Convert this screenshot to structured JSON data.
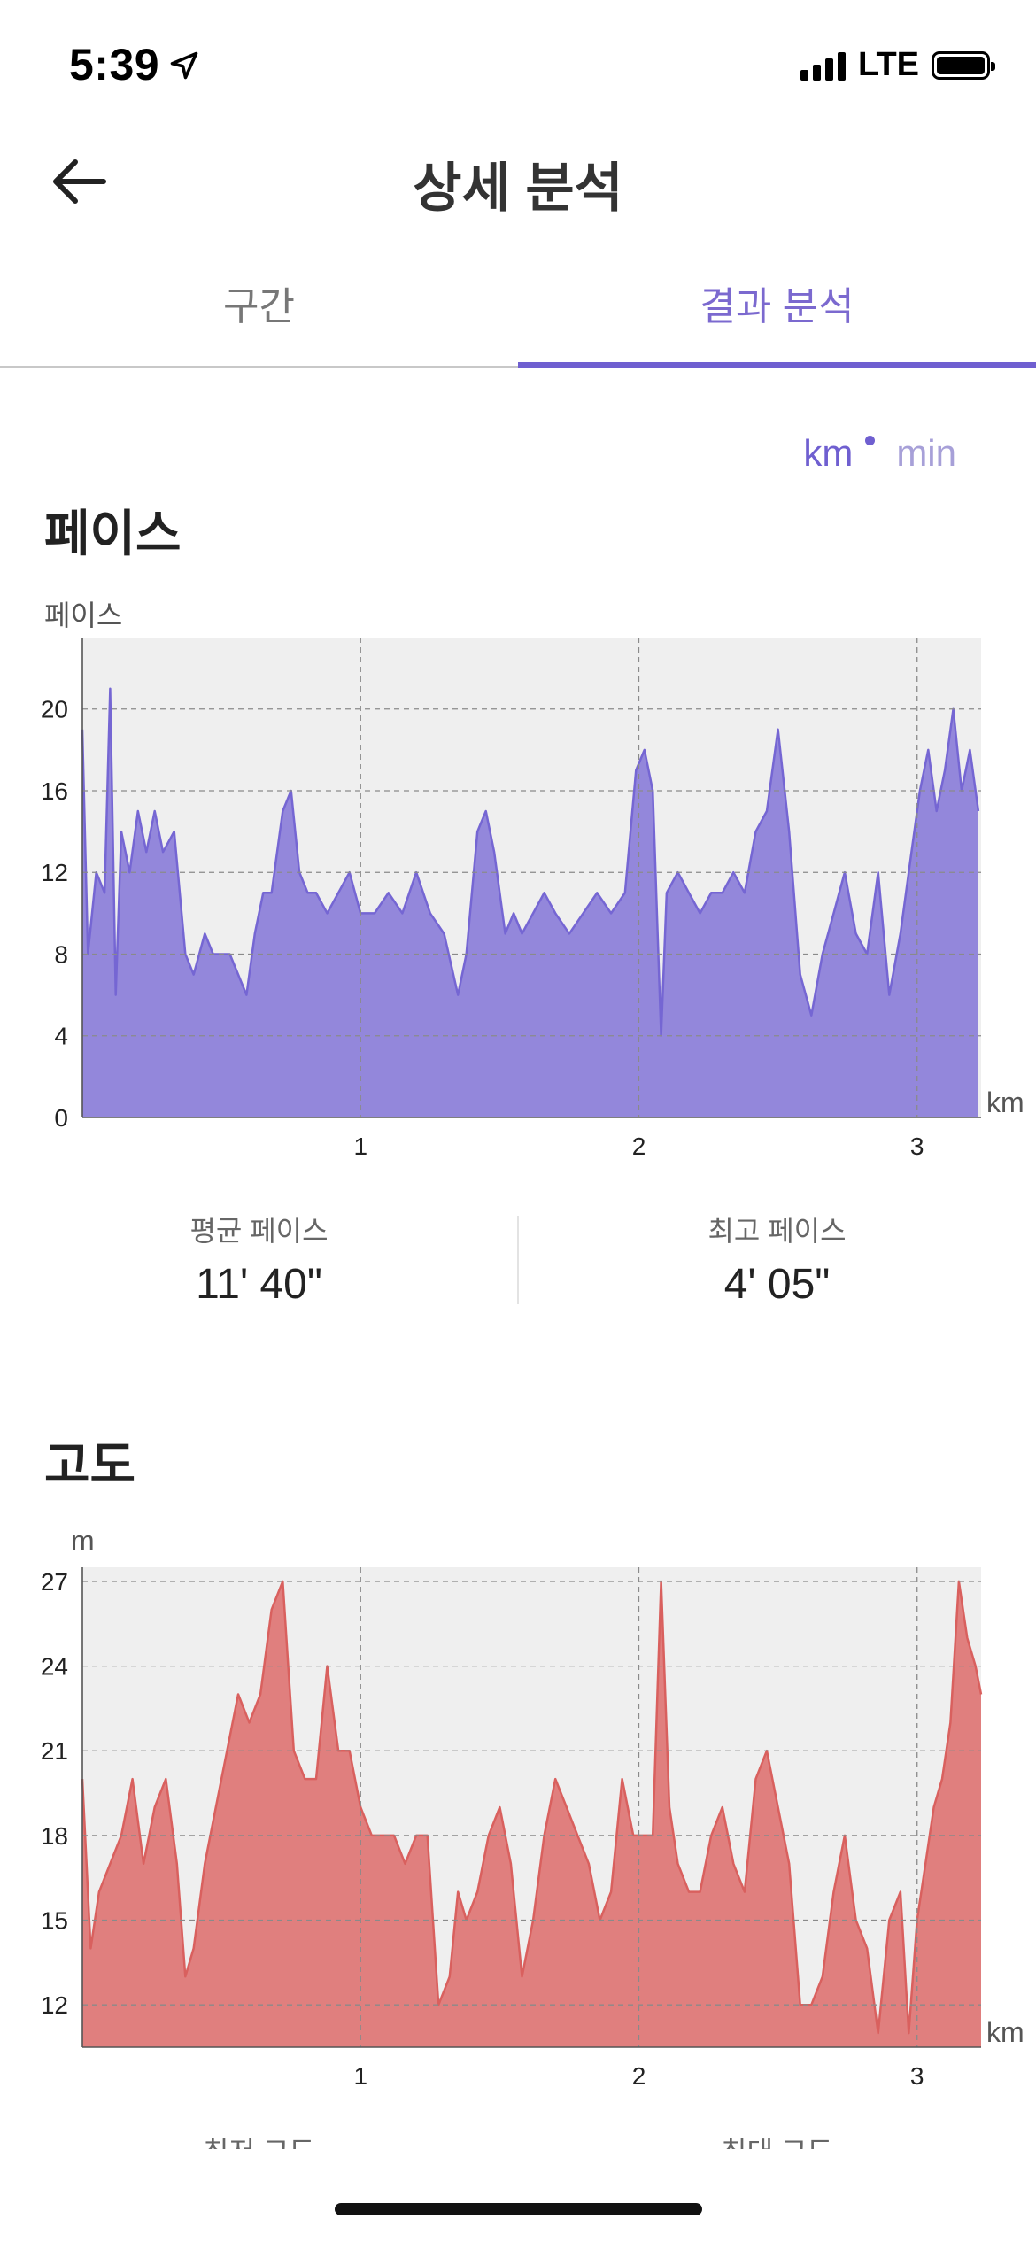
{
  "status": {
    "time": "5:39",
    "network": "LTE"
  },
  "nav": {
    "title": "상세 분석"
  },
  "tabs": [
    {
      "label": "구간"
    },
    {
      "label": "결과 분석"
    }
  ],
  "unit_toggle": {
    "km": "km",
    "min": "min"
  },
  "pace": {
    "title": "페이스",
    "axis_name": "페이스",
    "x_unit": "km",
    "avg_label": "평균 페이스",
    "avg_value": "11' 40\"",
    "best_label": "최고 페이스",
    "best_value": "4' 05\""
  },
  "elevation": {
    "title": "고도",
    "axis_name": "m",
    "x_unit": "km",
    "min_label": "최저 고도",
    "max_label": "최대 고도"
  },
  "colors": {
    "accent": "#6f5fd0",
    "pace_fill": "#9387db",
    "pace_line": "#7566d3",
    "elev_fill": "#e07f7e",
    "elev_line": "#d9605e",
    "plot_bg": "#efefef"
  },
  "chart_data": [
    {
      "type": "area",
      "ylim": [
        0,
        23.5
      ],
      "xlim": [
        0,
        3.23
      ],
      "y_ticks": [
        0,
        4,
        8,
        12,
        16,
        20
      ],
      "x_ticks": [
        1,
        2,
        3
      ],
      "grid": true,
      "x": [
        0,
        0.02,
        0.05,
        0.08,
        0.1,
        0.12,
        0.14,
        0.17,
        0.2,
        0.23,
        0.26,
        0.29,
        0.33,
        0.37,
        0.4,
        0.44,
        0.47,
        0.5,
        0.53,
        0.56,
        0.59,
        0.62,
        0.65,
        0.68,
        0.72,
        0.75,
        0.78,
        0.81,
        0.84,
        0.88,
        0.92,
        0.96,
        1.0,
        1.05,
        1.1,
        1.15,
        1.2,
        1.25,
        1.3,
        1.35,
        1.38,
        1.42,
        1.45,
        1.48,
        1.52,
        1.55,
        1.58,
        1.62,
        1.66,
        1.7,
        1.75,
        1.8,
        1.85,
        1.9,
        1.95,
        1.99,
        2.02,
        2.05,
        2.08,
        2.1,
        2.14,
        2.18,
        2.22,
        2.26,
        2.3,
        2.34,
        2.38,
        2.42,
        2.46,
        2.5,
        2.54,
        2.58,
        2.62,
        2.66,
        2.7,
        2.74,
        2.78,
        2.82,
        2.86,
        2.9,
        2.94,
        2.98,
        3.01,
        3.04,
        3.07,
        3.1,
        3.13,
        3.16,
        3.19,
        3.22
      ],
      "y": [
        19,
        8,
        12,
        11,
        21,
        6,
        14,
        12,
        15,
        13,
        15,
        13,
        14,
        8,
        7,
        9,
        8,
        8,
        8,
        7,
        6,
        9,
        11,
        11,
        15,
        16,
        12,
        11,
        11,
        10,
        11,
        12,
        10,
        10,
        11,
        10,
        12,
        10,
        9,
        6,
        8,
        14,
        15,
        13,
        9,
        10,
        9,
        10,
        11,
        10,
        9,
        10,
        11,
        10,
        11,
        17,
        18,
        16,
        4,
        11,
        12,
        11,
        10,
        11,
        11,
        12,
        11,
        14,
        15,
        19,
        14,
        7,
        5,
        8,
        10,
        12,
        9,
        8,
        12,
        6,
        9,
        13,
        16,
        18,
        15,
        17,
        20,
        16,
        18,
        15
      ]
    },
    {
      "type": "area",
      "ylim": [
        10.5,
        27.5
      ],
      "xlim": [
        0,
        3.23
      ],
      "y_ticks": [
        12,
        15,
        18,
        21,
        24,
        27
      ],
      "x_ticks": [
        1,
        2,
        3
      ],
      "grid": true,
      "x": [
        0,
        0.03,
        0.06,
        0.1,
        0.14,
        0.18,
        0.22,
        0.26,
        0.3,
        0.34,
        0.37,
        0.4,
        0.44,
        0.48,
        0.52,
        0.56,
        0.6,
        0.64,
        0.68,
        0.72,
        0.74,
        0.76,
        0.8,
        0.84,
        0.88,
        0.92,
        0.96,
        1.0,
        1.04,
        1.08,
        1.12,
        1.16,
        1.2,
        1.24,
        1.28,
        1.32,
        1.35,
        1.38,
        1.42,
        1.46,
        1.5,
        1.54,
        1.58,
        1.62,
        1.66,
        1.7,
        1.74,
        1.78,
        1.82,
        1.86,
        1.9,
        1.94,
        1.98,
        2.02,
        2.05,
        2.08,
        2.11,
        2.14,
        2.18,
        2.22,
        2.26,
        2.3,
        2.34,
        2.38,
        2.42,
        2.46,
        2.5,
        2.54,
        2.58,
        2.62,
        2.66,
        2.7,
        2.74,
        2.78,
        2.82,
        2.86,
        2.9,
        2.94,
        2.97,
        3.0,
        3.03,
        3.06,
        3.09,
        3.12,
        3.15,
        3.18,
        3.21,
        3.23
      ],
      "y": [
        20,
        14,
        16,
        17,
        18,
        20,
        17,
        19,
        20,
        17,
        13,
        14,
        17,
        19,
        21,
        23,
        22,
        23,
        26,
        27,
        24,
        21,
        20,
        20,
        24,
        21,
        21,
        19,
        18,
        18,
        18,
        17,
        18,
        18,
        12,
        13,
        16,
        15,
        16,
        18,
        19,
        17,
        13,
        15,
        18,
        20,
        19,
        18,
        17,
        15,
        16,
        20,
        18,
        18,
        18,
        27,
        19,
        17,
        16,
        16,
        18,
        19,
        17,
        16,
        20,
        21,
        19,
        17,
        12,
        12,
        13,
        16,
        18,
        15,
        14,
        11,
        15,
        16,
        11,
        15,
        17,
        19,
        20,
        22,
        27,
        25,
        24,
        23
      ]
    }
  ]
}
